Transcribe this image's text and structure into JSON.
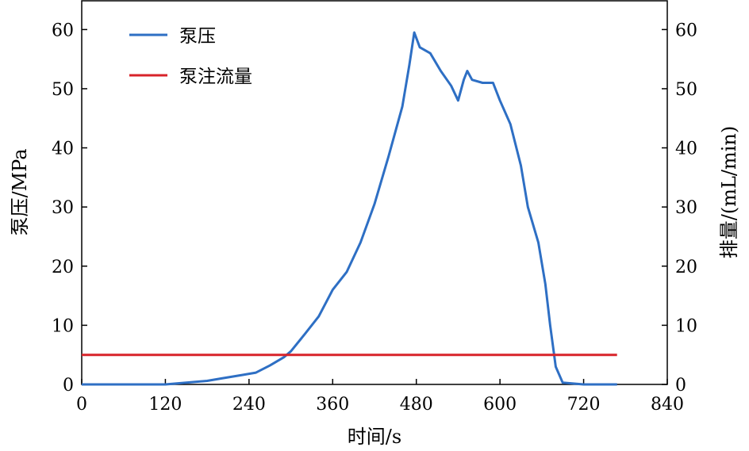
{
  "chart_data": {
    "type": "line",
    "xlabel": "时间/s",
    "ylabel_left": "泵压/MPa",
    "ylabel_right": "排量/(mL/min)",
    "xlim": [
      0,
      840
    ],
    "ylim_left": [
      0,
      65
    ],
    "ylim_right": [
      0,
      65
    ],
    "x_ticks": [
      "0",
      "120",
      "240",
      "360",
      "480",
      "600",
      "720",
      "840"
    ],
    "y_ticks_left": [
      "0",
      "10",
      "20",
      "30",
      "40",
      "50",
      "60"
    ],
    "y_ticks_right": [
      "0",
      "10",
      "20",
      "30",
      "40",
      "50",
      "60"
    ],
    "grid": false,
    "legend_position": "top-left",
    "series": [
      {
        "name": "泵压",
        "color": "#2e6fc4",
        "axis": "left",
        "points": [
          [
            0,
            0
          ],
          [
            60,
            0
          ],
          [
            120,
            0
          ],
          [
            150,
            0.3
          ],
          [
            180,
            0.6
          ],
          [
            200,
            1.0
          ],
          [
            230,
            1.6
          ],
          [
            250,
            2.0
          ],
          [
            270,
            3.2
          ],
          [
            290,
            4.6
          ],
          [
            300,
            5.6
          ],
          [
            320,
            8.5
          ],
          [
            340,
            11.5
          ],
          [
            360,
            16.0
          ],
          [
            380,
            19.0
          ],
          [
            400,
            24.0
          ],
          [
            420,
            30.5
          ],
          [
            440,
            38.5
          ],
          [
            460,
            47.0
          ],
          [
            470,
            54.0
          ],
          [
            477,
            59.5
          ],
          [
            485,
            57.0
          ],
          [
            500,
            56.0
          ],
          [
            515,
            53.0
          ],
          [
            530,
            50.5
          ],
          [
            540,
            48.0
          ],
          [
            548,
            51.5
          ],
          [
            553,
            53.0
          ],
          [
            560,
            51.5
          ],
          [
            575,
            51.0
          ],
          [
            590,
            51.0
          ],
          [
            600,
            48.0
          ],
          [
            615,
            44.0
          ],
          [
            630,
            37.0
          ],
          [
            640,
            30.0
          ],
          [
            655,
            24.0
          ],
          [
            665,
            17.0
          ],
          [
            672,
            10.0
          ],
          [
            680,
            3.0
          ],
          [
            690,
            0.3
          ],
          [
            720,
            0
          ],
          [
            768,
            0
          ]
        ]
      },
      {
        "name": "泵注流量",
        "color": "#d8232a",
        "axis": "right",
        "points": [
          [
            0,
            5
          ],
          [
            768,
            5
          ]
        ]
      }
    ]
  }
}
